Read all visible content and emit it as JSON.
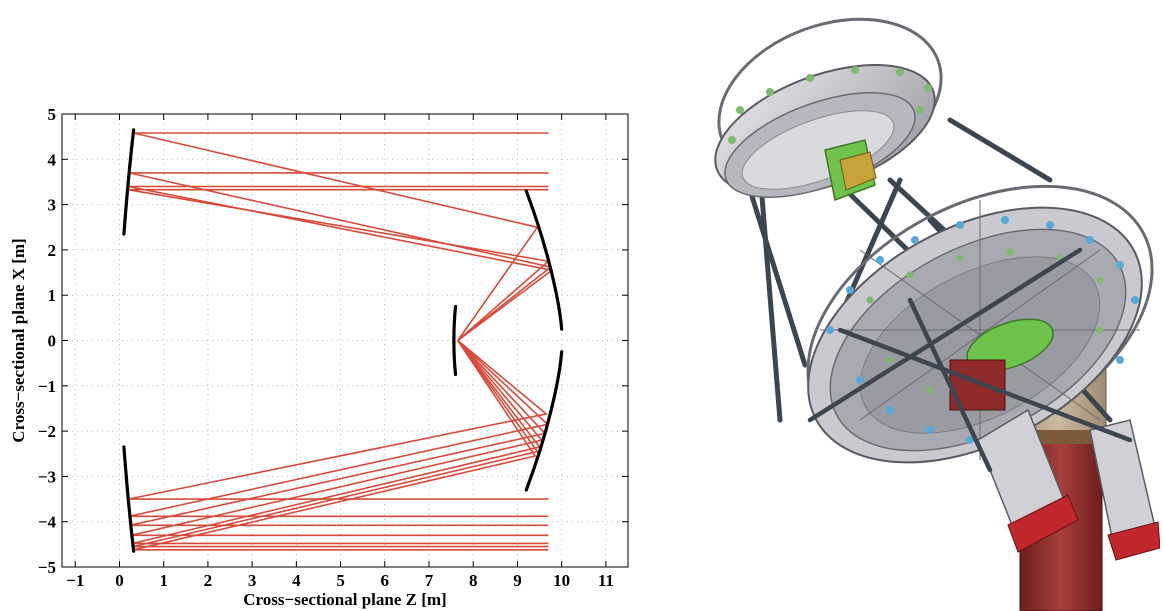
{
  "plot": {
    "xlabel": "Cross−sectional plane Z [m]",
    "ylabel": "Cross−sectional plane X [m]",
    "xlim": [
      -1.3,
      11.5
    ],
    "ylim": [
      -5,
      5
    ],
    "xticks": [
      "−1",
      "0",
      "1",
      "2",
      "3",
      "4",
      "5",
      "6",
      "7",
      "8",
      "9",
      "10",
      "11"
    ],
    "yticks": [
      "−5",
      "−4",
      "−3",
      "−2",
      "−1",
      "0",
      "1",
      "2",
      "3",
      "4",
      "5"
    ],
    "grid": true,
    "ray_color": "#d94a3a",
    "mirror_color": "#000000"
  },
  "geometry": {
    "primary_upper": [
      [
        0.1,
        2.35
      ],
      [
        0.15,
        3.0
      ],
      [
        0.22,
        3.8
      ],
      [
        0.32,
        4.65
      ]
    ],
    "primary_lower": [
      [
        0.1,
        -2.35
      ],
      [
        0.15,
        -3.0
      ],
      [
        0.22,
        -3.8
      ],
      [
        0.32,
        -4.65
      ]
    ],
    "secondary_upper": [
      [
        9.2,
        3.3
      ],
      [
        9.7,
        2.0
      ],
      [
        9.95,
        0.85
      ],
      [
        10.0,
        0.25
      ]
    ],
    "secondary_lower": [
      [
        10.0,
        -0.25
      ],
      [
        9.95,
        -0.85
      ],
      [
        9.7,
        -2.0
      ],
      [
        9.2,
        -3.3
      ]
    ],
    "focal_surface": [
      [
        7.6,
        -0.75
      ],
      [
        7.55,
        -0.3
      ],
      [
        7.55,
        0.3
      ],
      [
        7.6,
        0.75
      ]
    ],
    "focal_point": [
      7.65,
      0.0
    ]
  },
  "rays": {
    "upper": [
      {
        "incoming_x": 4.58,
        "primary": [
          0.32,
          4.58
        ],
        "secondary": [
          9.45,
          2.5
        ]
      },
      {
        "incoming_x": 3.7,
        "primary": [
          0.22,
          3.7
        ],
        "secondary": [
          9.75,
          1.62
        ]
      },
      {
        "incoming_x": 3.4,
        "primary": [
          0.2,
          3.4
        ],
        "secondary": [
          9.78,
          1.55
        ]
      },
      {
        "incoming_x": 3.33,
        "primary": [
          0.19,
          3.33
        ],
        "secondary": [
          9.7,
          1.75
        ]
      }
    ],
    "lower": [
      {
        "incoming_x": -3.5,
        "primary": [
          0.2,
          -3.5
        ],
        "secondary": [
          9.65,
          -1.62
        ]
      },
      {
        "incoming_x": -3.88,
        "primary": [
          0.22,
          -3.88
        ],
        "secondary": [
          9.68,
          -1.85
        ]
      },
      {
        "incoming_x": -4.08,
        "primary": [
          0.24,
          -4.08
        ],
        "secondary": [
          9.62,
          -2.05
        ]
      },
      {
        "incoming_x": -4.3,
        "primary": [
          0.27,
          -4.3
        ],
        "secondary": [
          9.55,
          -2.2
        ]
      },
      {
        "incoming_x": -4.48,
        "primary": [
          0.3,
          -4.48
        ],
        "secondary": [
          9.5,
          -2.35
        ]
      },
      {
        "incoming_x": -4.55,
        "primary": [
          0.31,
          -4.55
        ],
        "secondary": [
          9.45,
          -2.45
        ]
      },
      {
        "incoming_x": -4.62,
        "primary": [
          0.32,
          -4.62
        ],
        "secondary": [
          9.4,
          -2.55
        ]
      }
    ],
    "incoming_from_z": 9.7
  },
  "render": {
    "colors": {
      "panel": "#c9c9cf",
      "panel_dark": "#8e8e96",
      "panel_edge": "#5a5a62",
      "truss": "#3c4550",
      "green": "#6fc24a",
      "blue": "#5aa8d8",
      "tower_red": "#8e2a2a",
      "tower_tan": "#b7a48a",
      "camera_red": "#c0282c"
    }
  }
}
